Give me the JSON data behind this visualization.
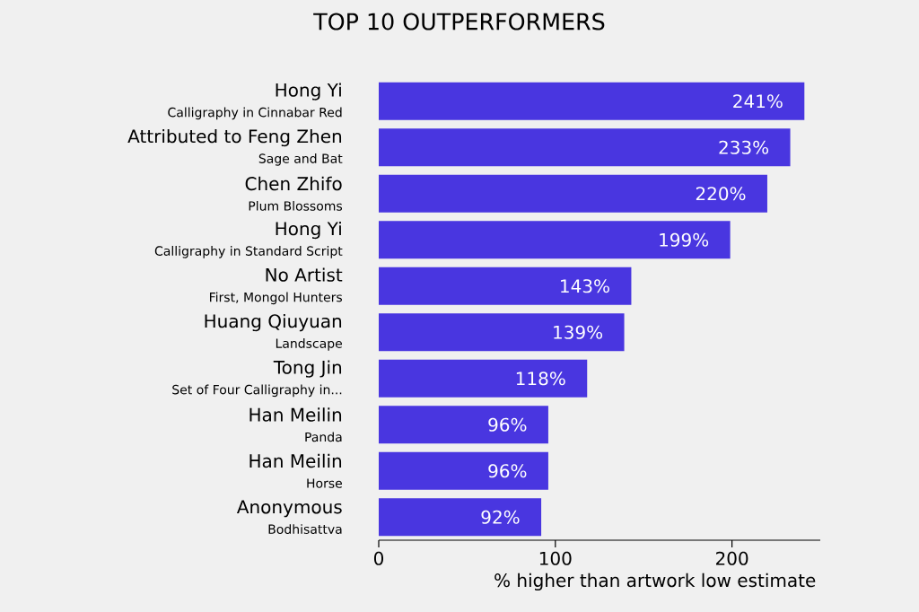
{
  "chart_data": {
    "type": "bar",
    "orientation": "horizontal",
    "title": "TOP 10 OUTPERFORMERS",
    "xlabel": "% higher than artwork low estimate",
    "categories": [
      "Hong Yi",
      "Attributed to Feng Zhen",
      "Chen Zhifo",
      "Hong Yi",
      "No Artist",
      "Huang Qiuyuan",
      "Tong Jin",
      "Han Meilin",
      "Han Meilin",
      "Anonymous"
    ],
    "annotations": [
      "Calligraphy in Cinnabar Red",
      "Sage and Bat",
      "Plum Blossoms",
      "Calligraphy in Standard Script",
      "First, Mongol Hunters",
      "Landscape",
      "Set of Four Calligraphy in...",
      "Panda",
      "Horse",
      "Bodhisattva"
    ],
    "values": [
      241,
      233,
      220,
      199,
      143,
      139,
      118,
      96,
      96,
      92
    ],
    "value_labels": [
      "241%",
      "233%",
      "220%",
      "199%",
      "143%",
      "139%",
      "118%",
      "96%",
      "96%",
      "92%"
    ],
    "color": "#4936e0",
    "xlim": [
      0,
      250
    ],
    "xticks": [
      0,
      100,
      200
    ]
  }
}
